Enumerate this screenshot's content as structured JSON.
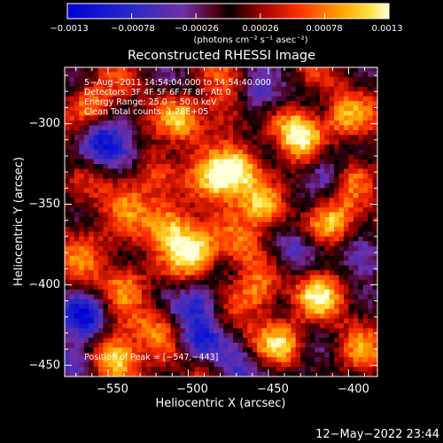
{
  "chart_data": {
    "type": "heatmap",
    "title": "Reconstructed RHESSI Image",
    "xlabel": "Heliocentric X (arcsec)",
    "ylabel": "Heliocentric Y (arcsec)",
    "xlim": [
      -577,
      -382
    ],
    "ylim": [
      -457,
      -265
    ],
    "x_ticks": [
      -550,
      -500,
      -450,
      -400
    ],
    "x_tick_labels": [
      "−550",
      "−500",
      "−450",
      "−400"
    ],
    "y_ticks": [
      -300,
      -350,
      -400,
      -450
    ],
    "y_tick_labels": [
      "−300",
      "−350",
      "−400",
      "−450"
    ],
    "colorbar": {
      "min": -0.0013,
      "max": 0.0013,
      "ticks": [
        -0.0013,
        -0.00078,
        -0.00026,
        0.00026,
        0.00078,
        0.0013
      ],
      "tick_labels": [
        "−0.0013",
        "−0.00078",
        "−0.00026",
        "0.00026",
        "0.00078",
        "0.0013"
      ],
      "units_label": "(photons cm⁻² s⁻¹ asec⁻²)"
    },
    "annotations": [
      "5−Aug−2011 14:54:04.000 to 14:54:40.000",
      "Detectors: 3F 4F 5F 6F 7F 8F, Att 0",
      "Energy Range: 25.0 − 50.0 keV",
      "Clean     Total counts: 1.28E+05"
    ],
    "peak_label": "Position of Peak = [−547,−443]",
    "peak": [
      -547,
      -443
    ],
    "grid": false,
    "legend": "none",
    "bright_regions": [
      {
        "x": -547,
        "y": -443,
        "value": 1.0
      },
      {
        "x": -432,
        "y": -302,
        "value": 0.95
      },
      {
        "x": -469,
        "y": -326,
        "value": 0.9
      },
      {
        "x": -497,
        "y": -377,
        "value": 0.85
      },
      {
        "x": -512,
        "y": -362,
        "value": 0.8
      },
      {
        "x": -485,
        "y": -335,
        "value": 0.75
      },
      {
        "x": -458,
        "y": -403,
        "value": 0.7
      },
      {
        "x": -412,
        "y": -361,
        "value": 0.72
      },
      {
        "x": -453,
        "y": -350,
        "value": 0.65
      },
      {
        "x": -540,
        "y": -395,
        "value": 0.6
      },
      {
        "x": -420,
        "y": -405,
        "value": 0.68
      },
      {
        "x": -441,
        "y": -434,
        "value": 0.65
      },
      {
        "x": -560,
        "y": -288,
        "value": 0.55
      },
      {
        "x": -564,
        "y": -372,
        "value": 0.45
      },
      {
        "x": -505,
        "y": -296,
        "value": 0.55
      },
      {
        "x": -525,
        "y": -327,
        "value": 0.5
      },
      {
        "x": -400,
        "y": -328,
        "value": 0.6
      },
      {
        "x": -405,
        "y": -297,
        "value": 0.55
      },
      {
        "x": -470,
        "y": -375,
        "value": 0.55
      },
      {
        "x": -540,
        "y": -345,
        "value": 0.48
      },
      {
        "x": -520,
        "y": -425,
        "value": 0.4
      },
      {
        "x": -490,
        "y": -445,
        "value": 0.35
      },
      {
        "x": -395,
        "y": -445,
        "value": 0.45
      },
      {
        "x": -480,
        "y": -290,
        "value": 0.5
      }
    ],
    "dark_regions": [
      {
        "x": -555,
        "y": -310,
        "value": -0.8
      },
      {
        "x": -565,
        "y": -418,
        "value": -0.9
      },
      {
        "x": -493,
        "y": -410,
        "value": -0.75
      },
      {
        "x": -413,
        "y": -328,
        "value": -0.7
      },
      {
        "x": -437,
        "y": -377,
        "value": -0.65
      },
      {
        "x": -458,
        "y": -285,
        "value": -0.7
      },
      {
        "x": -392,
        "y": -382,
        "value": -0.6
      },
      {
        "x": -495,
        "y": -435,
        "value": -0.8
      },
      {
        "x": -575,
        "y": -445,
        "value": -0.75
      },
      {
        "x": -472,
        "y": -450,
        "value": -0.55
      },
      {
        "x": -430,
        "y": -460,
        "value": -0.6
      },
      {
        "x": -540,
        "y": -318,
        "value": -0.5
      }
    ]
  },
  "footer": {
    "date": "12−May−2022 23:44"
  }
}
